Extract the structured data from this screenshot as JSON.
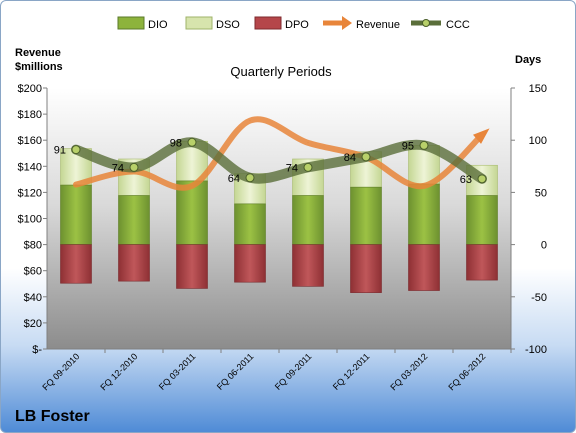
{
  "company": "LB Foster",
  "chart_data": {
    "type": "bar",
    "title": "Quarterly Periods",
    "left_axis_label_line1": "Revenue",
    "left_axis_label_line2": "$millions",
    "right_axis_label": "Days",
    "categories": [
      "FQ 09-2010",
      "FQ 12-2010",
      "FQ 03-2011",
      "FQ 06-2011",
      "FQ 09-2011",
      "FQ 12-2011",
      "FQ 03-2012",
      "FQ 06-2012"
    ],
    "left_ylim": [
      0,
      200
    ],
    "left_ticks": [
      {
        "value": 0,
        "label": "$-"
      },
      {
        "value": 20,
        "label": "$20"
      },
      {
        "value": 40,
        "label": "$40"
      },
      {
        "value": 60,
        "label": "$60"
      },
      {
        "value": 80,
        "label": "$80"
      },
      {
        "value": 100,
        "label": "$100"
      },
      {
        "value": 120,
        "label": "$120"
      },
      {
        "value": 140,
        "label": "$140"
      },
      {
        "value": 160,
        "label": "$160"
      },
      {
        "value": 180,
        "label": "$180"
      },
      {
        "value": 200,
        "label": "$200"
      }
    ],
    "right_ylim": [
      -100,
      150
    ],
    "right_ticks": [
      {
        "value": -100,
        "label": "-100"
      },
      {
        "value": -50,
        "label": "-50"
      },
      {
        "value": 0,
        "label": "0"
      },
      {
        "value": 50,
        "label": "50"
      },
      {
        "value": 100,
        "label": "100"
      },
      {
        "value": 150,
        "label": "150"
      }
    ],
    "series": [
      {
        "name": "DIO",
        "axis": "right",
        "kind": "bar",
        "color": "#8db33c",
        "values": [
          57,
          47,
          61,
          39,
          47,
          55,
          58,
          47
        ]
      },
      {
        "name": "DSO",
        "axis": "right",
        "kind": "bar-stacked-on-DIO",
        "color": "#d7e4ad",
        "values": [
          35,
          35,
          38,
          29,
          35,
          34,
          37,
          29
        ]
      },
      {
        "name": "DPO",
        "axis": "right",
        "kind": "bar-negative",
        "color": "#b5464a",
        "values": [
          -37,
          -35,
          -42,
          -36,
          -40,
          -46,
          -44,
          -34
        ]
      },
      {
        "name": "Revenue",
        "axis": "left",
        "kind": "line",
        "color": "#e8853a",
        "values": [
          126,
          136,
          125,
          175,
          158,
          147,
          125,
          164
        ]
      },
      {
        "name": "CCC",
        "axis": "right",
        "kind": "line",
        "color": "#5a6e3a",
        "values": [
          91,
          74,
          98,
          64,
          74,
          84,
          95,
          63
        ]
      }
    ],
    "data_labels": [
      "91",
      "74",
      "98",
      "64",
      "74",
      "84",
      "95",
      "63"
    ],
    "legend_position": "top",
    "grid": false
  }
}
